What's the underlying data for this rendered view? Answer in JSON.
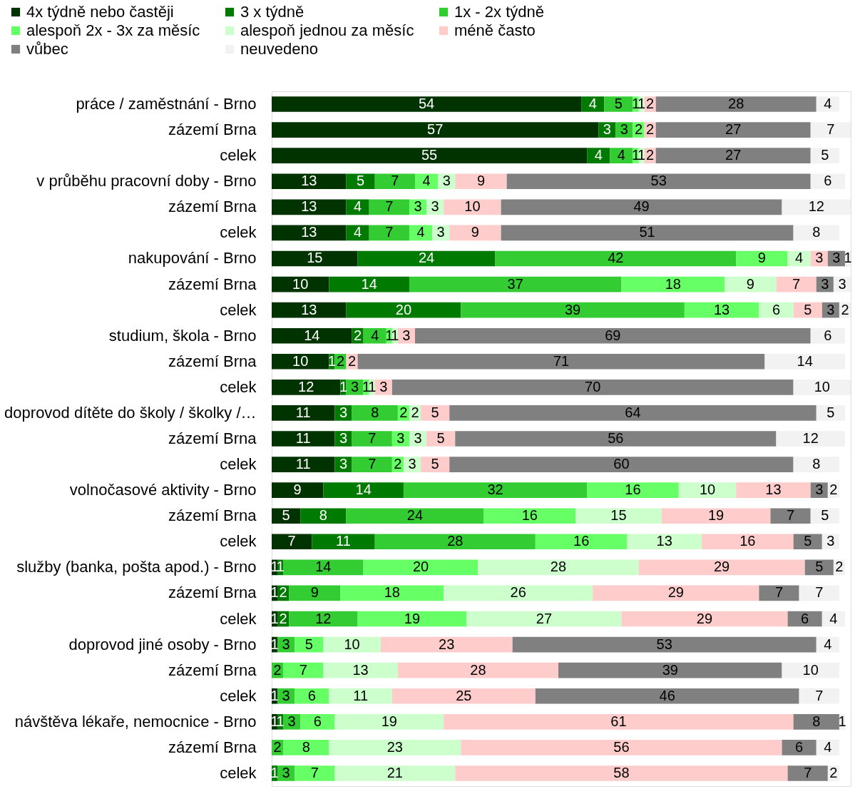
{
  "chart_data": {
    "type": "bar",
    "orientation": "horizontal",
    "stacked": true,
    "legend": "top left",
    "tick_labels": "y",
    "categories": [
      "práce / zaměstnání - Brno",
      "zázemí Brna",
      "celek",
      "v průběhu pracovní doby - Brno",
      "zázemí Brna",
      "celek",
      "nakupování - Brno",
      "zázemí Brna",
      "celek",
      "studium, škola - Brno",
      "zázemí Brna",
      "celek",
      "doprovod dítěte do školy / školky /…",
      "zázemí Brna",
      "celek",
      "volnočasové aktivity - Brno",
      "zázemí Brna",
      "celek",
      "služby (banka, pošta apod.) - Brno",
      "zázemí Brna",
      "celek",
      "doprovod jiné osoby - Brno",
      "zázemí Brna",
      "celek",
      "návštěva lékaře, nemocnice - Brno",
      "zázemí Brna",
      "celek"
    ],
    "series": [
      {
        "name": "4x týdně nebo častěji",
        "color": "#003300",
        "values": [
          54,
          57,
          55,
          13,
          13,
          13,
          15,
          10,
          13,
          14,
          10,
          12,
          11,
          11,
          11,
          9,
          5,
          7,
          1,
          1,
          1,
          1,
          0,
          1,
          1,
          0,
          0
        ],
        "value_labels": [
          "54",
          "57",
          "55",
          "13",
          "13",
          "13",
          "15",
          "10",
          "13",
          "14",
          "10",
          "12",
          "11",
          "11",
          "11",
          "9",
          "5",
          "7",
          "1",
          "1",
          "1",
          "1",
          null,
          "1",
          "1",
          null,
          null
        ]
      },
      {
        "name": "3 x týdně",
        "color": "#007a00",
        "values": [
          4,
          3,
          4,
          5,
          4,
          4,
          24,
          14,
          20,
          2,
          1,
          1,
          3,
          3,
          3,
          14,
          8,
          11,
          1,
          2,
          2,
          0,
          0,
          0,
          1,
          0,
          1
        ],
        "value_labels": [
          "4",
          "3",
          "4",
          "5",
          "4",
          "4",
          "24",
          "14",
          "20",
          "2",
          "1",
          "1",
          "3",
          "3",
          "3",
          "14",
          "8",
          "11",
          "1",
          "2",
          "2",
          null,
          null,
          null,
          "1",
          null,
          "1"
        ]
      },
      {
        "name": "1x - 2x týdně",
        "color": "#33cc33",
        "values": [
          5,
          3,
          4,
          7,
          7,
          7,
          42,
          37,
          39,
          4,
          2,
          3,
          8,
          7,
          7,
          32,
          24,
          28,
          14,
          9,
          12,
          3,
          2,
          3,
          3,
          2,
          3
        ],
        "value_labels": [
          "5",
          "3",
          "4",
          "7",
          "7",
          "7",
          "42",
          "37",
          "39",
          "4",
          "2",
          "3",
          "8",
          "7",
          "7",
          "32",
          "24",
          "28",
          "14",
          "9",
          "12",
          "3",
          "2",
          "3",
          "3",
          "2",
          "3"
        ]
      },
      {
        "name": "alespoň 2x - 3x za měsíc",
        "color": "#66ff66",
        "values": [
          1,
          2,
          1,
          4,
          3,
          4,
          9,
          18,
          13,
          1,
          0,
          1,
          2,
          3,
          2,
          16,
          16,
          16,
          20,
          18,
          19,
          5,
          7,
          6,
          6,
          8,
          7
        ],
        "value_labels": [
          "1",
          "2",
          "1",
          "4",
          "3",
          "4",
          "9",
          "18",
          "13",
          "1",
          null,
          "1",
          "2",
          "3",
          "2",
          "16",
          "16",
          "16",
          "20",
          "18",
          "19",
          "5",
          "7",
          "6",
          "6",
          "8",
          "7"
        ]
      },
      {
        "name": "alespoň jednou za měsíc",
        "color": "#ccffcc",
        "values": [
          1,
          0,
          1,
          3,
          3,
          3,
          4,
          9,
          6,
          1,
          0,
          1,
          2,
          3,
          3,
          10,
          15,
          13,
          28,
          26,
          27,
          10,
          13,
          11,
          19,
          23,
          21
        ],
        "value_labels": [
          "1",
          null,
          "1",
          "3",
          "3",
          "3",
          "4",
          "9",
          "6",
          "1",
          null,
          "1",
          "2",
          "3",
          "3",
          "10",
          "15",
          "13",
          "28",
          "26",
          "27",
          "10",
          "13",
          "11",
          "19",
          "23",
          "21"
        ]
      },
      {
        "name": "méně často",
        "color": "#ffcccc",
        "values": [
          2,
          2,
          2,
          9,
          10,
          9,
          3,
          7,
          5,
          3,
          2,
          3,
          5,
          5,
          5,
          13,
          19,
          16,
          29,
          29,
          29,
          23,
          28,
          25,
          61,
          56,
          58
        ],
        "value_labels": [
          "2",
          "2",
          "2",
          "9",
          "10",
          "9",
          "3",
          "7",
          "5",
          "3",
          "2",
          "3",
          "5",
          "5",
          "5",
          "13",
          "19",
          "16",
          "29",
          "29",
          "29",
          "23",
          "28",
          "25",
          "61",
          "56",
          "58"
        ]
      },
      {
        "name": "vůbec",
        "color": "#808080",
        "values": [
          28,
          27,
          27,
          53,
          49,
          51,
          3,
          3,
          3,
          69,
          71,
          70,
          64,
          56,
          60,
          3,
          7,
          5,
          5,
          7,
          6,
          53,
          39,
          46,
          8,
          6,
          7
        ],
        "value_labels": [
          "28",
          "27",
          "27",
          "53",
          "49",
          "51",
          "3",
          "3",
          "3",
          "69",
          "71",
          "70",
          "64",
          "56",
          "60",
          "3",
          "7",
          "5",
          "5",
          "7",
          "6",
          "53",
          "39",
          "46",
          "8",
          "6",
          "7"
        ]
      },
      {
        "name": "neuvedeno",
        "color": "#f2f2f2",
        "values": [
          4,
          7,
          5,
          6,
          12,
          8,
          1,
          3,
          2,
          6,
          14,
          10,
          5,
          12,
          8,
          2,
          5,
          3,
          2,
          7,
          4,
          4,
          10,
          7,
          1,
          4,
          2
        ],
        "value_labels": [
          "4",
          "7",
          "5",
          "6",
          "12",
          "8",
          "1",
          "3",
          "2",
          "6",
          "14",
          "10",
          "5",
          "12",
          "8",
          "2",
          "5",
          "3",
          "2",
          "7",
          "4",
          "4",
          "10",
          "7",
          "1",
          "4",
          "2"
        ]
      }
    ]
  }
}
